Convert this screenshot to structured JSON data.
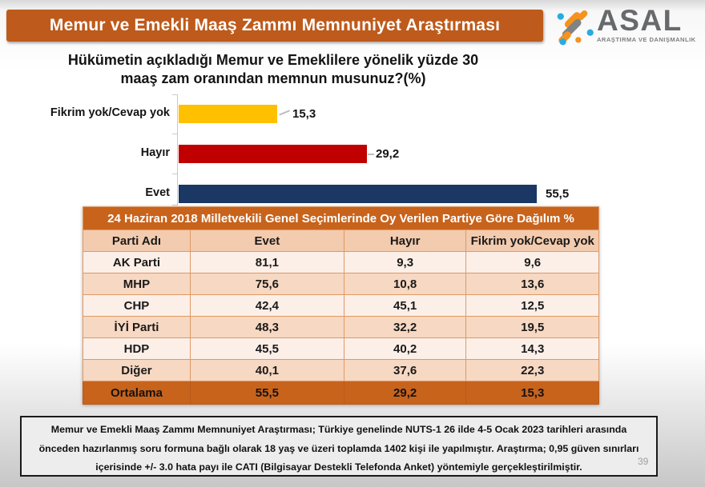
{
  "header": {
    "title": "Memur ve Emekli Maaş Zammı Memnuniyet Araştırması",
    "banner_color": "#BE5A1B",
    "logo": {
      "name": "ASAL",
      "tagline": "ARAŞTIRMA VE DANIŞMANLIK",
      "orange": "#F6921E",
      "blue": "#29ABE2",
      "gray": "#808285"
    }
  },
  "chart_data": {
    "type": "bar",
    "orientation": "horizontal",
    "title": "Hükümetin açıkladığı Memur ve Emeklilere yönelik yüzde 30 maaş zam oranından memnun musunuz?(%)",
    "title_lines": [
      "Hükümetin açıkladığı Memur ve Emeklilere yönelik yüzde 30",
      "maaş zam oranından memnun musunuz?(%)"
    ],
    "categories": [
      "Fikrim yok/Cevap yok",
      "Hayır",
      "Evet"
    ],
    "values": [
      15.3,
      29.2,
      55.5
    ],
    "value_labels": [
      "15,3",
      "29,2",
      "55,5"
    ],
    "bar_colors": [
      "#FFC000",
      "#C00000",
      "#1B3764"
    ],
    "xlim": [
      0,
      60
    ],
    "grid": false,
    "legend": false
  },
  "table": {
    "title": "24 Haziran 2018 Milletvekili Genel Seçimlerinde Oy Verilen Partiye Göre Dağılım %",
    "header_color": "#C8631C",
    "columns": [
      "Parti Adı",
      "Evet",
      "Hayır",
      "Fikrim yok/Cevap yok"
    ],
    "rows": [
      [
        "AK Parti",
        "81,1",
        "9,3",
        "9,6"
      ],
      [
        "MHP",
        "75,6",
        "10,8",
        "13,6"
      ],
      [
        "CHP",
        "42,4",
        "45,1",
        "12,5"
      ],
      [
        "İYİ Parti",
        "48,3",
        "32,2",
        "19,5"
      ],
      [
        "HDP",
        "45,5",
        "40,2",
        "14,3"
      ],
      [
        "Diğer",
        "40,1",
        "37,6",
        "22,3"
      ]
    ],
    "total_row": [
      "Ortalama",
      "55,5",
      "29,2",
      "15,3"
    ]
  },
  "footer": {
    "text": "Memur ve Emekli Maaş Zammı Memnuniyet Araştırması; Türkiye genelinde NUTS-1 26 ilde 4-5 Ocak 2023 tarihleri arasında önceden hazırlanmış soru formuna bağlı olarak 18 yaş ve üzeri toplamda 1402 kişi ile yapılmıştır. Araştırma; 0,95 güven sınırları içerisinde +/- 3.0 hata payı ile CATI (Bilgisayar Destekli Telefonda Anket) yöntemiyle gerçekleştirilmiştir.",
    "page_number": "39"
  }
}
